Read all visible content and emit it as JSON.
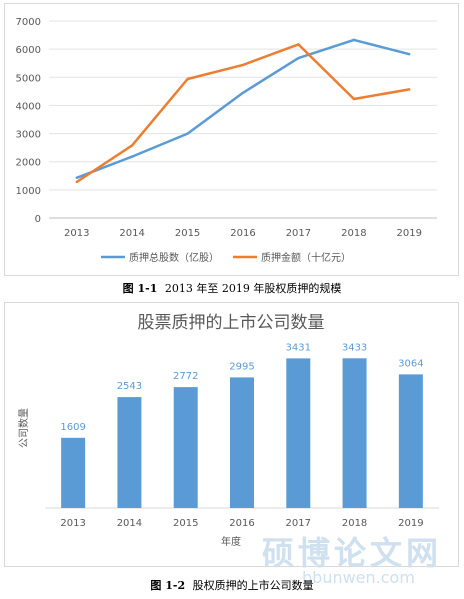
{
  "chart_data": [
    {
      "type": "line",
      "title": "",
      "categories": [
        "2013",
        "2014",
        "2015",
        "2016",
        "2017",
        "2018",
        "2019"
      ],
      "y_ticks": [
        "0",
        "1000",
        "2000",
        "3000",
        "4000",
        "5000",
        "6000",
        "7000"
      ],
      "ylim": [
        0,
        7000
      ],
      "grid": true,
      "legend_position": "bottom",
      "series": [
        {
          "name": "质押总股数（亿股）",
          "color": "#5b9bd5",
          "values": [
            1430,
            2180,
            3000,
            4450,
            5680,
            6330,
            5820
          ]
        },
        {
          "name": "质押金额（十亿元）",
          "color": "#ed7d31",
          "values": [
            1280,
            2580,
            4940,
            5440,
            6170,
            4230,
            4570
          ]
        }
      ]
    },
    {
      "type": "bar",
      "title": "股票质押的上市公司数量",
      "categories": [
        "2013",
        "2014",
        "2015",
        "2016",
        "2017",
        "2018",
        "2019"
      ],
      "values": [
        1609,
        2543,
        2772,
        2995,
        3431,
        3433,
        3064
      ],
      "value_labels": [
        "1609",
        "2543",
        "2772",
        "2995",
        "3431",
        "3433",
        "3064"
      ],
      "xlabel": "年度",
      "ylabel": "公司数量",
      "color": "#5b9bd5",
      "grid": false
    }
  ],
  "captions": {
    "fig1_label": "图 1-1",
    "fig1_text": "2013 年至 2019 年股权质押的规模",
    "fig2_label": "图 1-2",
    "fig2_text": "股权质押的上市公司数量"
  },
  "watermark": {
    "text": "硕博论文网",
    "url": "bbunwen.com"
  }
}
